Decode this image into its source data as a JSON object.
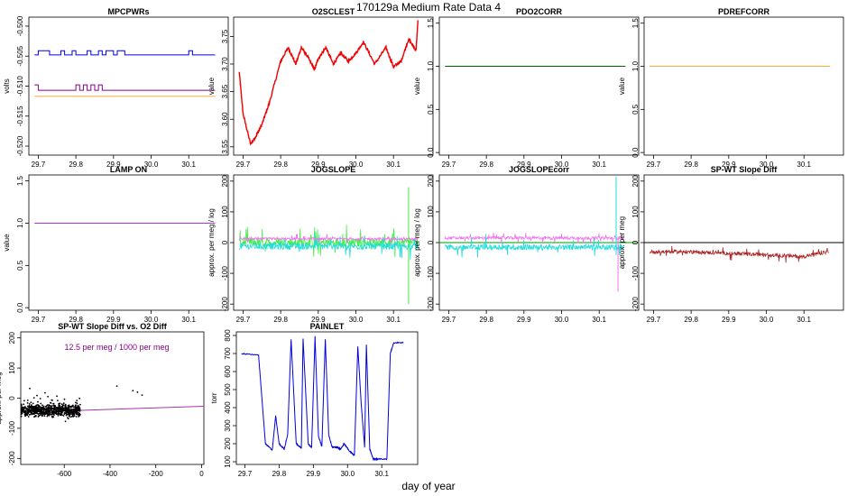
{
  "page": {
    "title": "170129a   Medium Rate Data 4",
    "xlabel": "day of year"
  },
  "chart_data": [
    {
      "id": "mpcpwrs",
      "type": "line",
      "title": "MPCPWRs",
      "xlabel": "",
      "ylabel": "volts",
      "xlim": [
        29.675,
        30.205
      ],
      "ylim": [
        -0.5215,
        -0.4985
      ],
      "xticks": [
        29.7,
        29.8,
        29.9,
        30.0,
        30.1
      ],
      "xtick_labels": [
        "29.7",
        "29.8",
        "29.9",
        "30.0",
        "30.1"
      ],
      "yticks": [
        -0.52,
        -0.515,
        -0.51,
        -0.505,
        -0.5
      ],
      "ytick_labels": [
        "-0.520",
        "-0.515",
        "-0.510",
        "-0.505",
        "-0.500"
      ],
      "colors": {
        "series1": "#0000ee",
        "series2": "#880088",
        "series3": "#ffaa33"
      },
      "series": [
        {
          "color": "#0000ee",
          "x": [
            29.69,
            29.7,
            29.7,
            29.73,
            29.73,
            29.76,
            29.76,
            29.77,
            29.77,
            29.79,
            29.79,
            29.8,
            29.8,
            29.83,
            29.83,
            29.84,
            29.84,
            29.86,
            29.86,
            29.87,
            29.87,
            29.88,
            29.88,
            29.9,
            29.9,
            29.91,
            29.91,
            29.93,
            29.93,
            29.95,
            29.95,
            30.1,
            30.1,
            30.11,
            30.11,
            30.12,
            30.12,
            30.17
          ],
          "y": [
            -0.5048,
            -0.5048,
            -0.5041,
            -0.5041,
            -0.5048,
            -0.5048,
            -0.5041,
            -0.5041,
            -0.5048,
            -0.5048,
            -0.5041,
            -0.5041,
            -0.5048,
            -0.5048,
            -0.5041,
            -0.5041,
            -0.5048,
            -0.5048,
            -0.5041,
            -0.5041,
            -0.5048,
            -0.5048,
            -0.5041,
            -0.5041,
            -0.5048,
            -0.5048,
            -0.5041,
            -0.5041,
            -0.5048,
            -0.5048,
            -0.5048,
            -0.5048,
            -0.5041,
            -0.5041,
            -0.5048,
            -0.5048,
            -0.5048,
            -0.5048
          ]
        },
        {
          "color": "#880088",
          "x": [
            29.69,
            29.7,
            29.7,
            29.8,
            29.8,
            29.81,
            29.81,
            29.82,
            29.82,
            29.83,
            29.83,
            29.84,
            29.84,
            29.85,
            29.85,
            29.86,
            29.86,
            29.87,
            29.87,
            30.17
          ],
          "y": [
            -0.5098,
            -0.5098,
            -0.5107,
            -0.5107,
            -0.5098,
            -0.5098,
            -0.5107,
            -0.5107,
            -0.5098,
            -0.5098,
            -0.5107,
            -0.5107,
            -0.5098,
            -0.5098,
            -0.5107,
            -0.5107,
            -0.5098,
            -0.5098,
            -0.5107,
            -0.5107
          ]
        },
        {
          "color": "#ffaa33",
          "x": [
            29.69,
            30.17
          ],
          "y": [
            -0.5117,
            -0.5117
          ]
        }
      ]
    },
    {
      "id": "o2sclest",
      "type": "line",
      "title": "O2SCLEST",
      "xlabel": "",
      "ylabel": "value",
      "xlim": [
        29.675,
        30.205
      ],
      "ylim": [
        3.535,
        3.785
      ],
      "xticks": [
        29.7,
        29.8,
        29.9,
        30.0,
        30.1
      ],
      "xtick_labels": [
        "29.7",
        "29.8",
        "29.9",
        "30.0",
        "30.1"
      ],
      "yticks": [
        3.55,
        3.6,
        3.65,
        3.7,
        3.75
      ],
      "ytick_labels": [
        "3.55",
        "3.60",
        "3.65",
        "3.70",
        "3.75"
      ],
      "colors": {
        "series1": "#ee0000"
      },
      "series": [
        {
          "color": "#ee0000",
          "x": [
            29.69,
            29.7,
            29.72,
            29.735,
            29.75,
            29.77,
            29.8,
            29.82,
            29.84,
            29.855,
            29.87,
            29.89,
            29.9,
            29.92,
            29.94,
            29.96,
            29.98,
            30.0,
            30.02,
            30.05,
            30.08,
            30.1,
            30.12,
            30.14,
            30.16,
            30.165
          ],
          "y": [
            3.685,
            3.61,
            3.555,
            3.57,
            3.59,
            3.63,
            3.705,
            3.73,
            3.7,
            3.73,
            3.715,
            3.69,
            3.71,
            3.73,
            3.7,
            3.72,
            3.705,
            3.72,
            3.74,
            3.7,
            3.73,
            3.695,
            3.705,
            3.745,
            3.725,
            3.78
          ]
        }
      ]
    },
    {
      "id": "pdo2corr",
      "type": "line",
      "title": "PDO2CORR",
      "xlabel": "",
      "ylabel": "value",
      "xlim": [
        29.675,
        30.205
      ],
      "ylim": [
        -0.03,
        1.57
      ],
      "xticks": [
        29.7,
        29.8,
        29.9,
        30.0,
        30.1
      ],
      "xtick_labels": [
        "29.7",
        "29.8",
        "29.9",
        "30.0",
        "30.1"
      ],
      "yticks": [
        0,
        0.5,
        1.0,
        1.5
      ],
      "ytick_labels": [
        "0.0",
        "0.5",
        "1.0",
        "1.5"
      ],
      "colors": {
        "series1": "#006400"
      },
      "series": [
        {
          "color": "#006400",
          "x": [
            29.69,
            30.17
          ],
          "y": [
            1.0,
            1.0
          ]
        }
      ]
    },
    {
      "id": "pdrefcorr",
      "type": "line",
      "title": "PDREFCORR",
      "xlabel": "",
      "ylabel": "value",
      "xlim": [
        29.675,
        30.205
      ],
      "ylim": [
        -0.03,
        1.57
      ],
      "xticks": [
        29.7,
        29.8,
        29.9,
        30.0,
        30.1
      ],
      "xtick_labels": [
        "29.7",
        "29.8",
        "29.9",
        "30.0",
        "30.1"
      ],
      "yticks": [
        0,
        0.5,
        1.0,
        1.5
      ],
      "ytick_labels": [
        "0.0",
        "0.5",
        "1.0",
        "1.5"
      ],
      "colors": {
        "series1": "#ffaa33"
      },
      "series": [
        {
          "color": "#ffaa33",
          "x": [
            29.69,
            30.17
          ],
          "y": [
            1.0,
            1.0
          ]
        }
      ]
    },
    {
      "id": "lampon",
      "type": "line",
      "title": "LAMP ON",
      "xlabel": "",
      "ylabel": "value",
      "xlim": [
        29.675,
        30.205
      ],
      "ylim": [
        -0.03,
        1.57
      ],
      "xticks": [
        29.7,
        29.8,
        29.9,
        30.0,
        30.1
      ],
      "xtick_labels": [
        "29.7",
        "29.8",
        "29.9",
        "30.0",
        "30.1"
      ],
      "yticks": [
        0,
        0.5,
        1.0,
        1.5
      ],
      "ytick_labels": [
        "0.0",
        "0.5",
        "1.0",
        "1.5"
      ],
      "colors": {
        "series1": "#aa33dd"
      },
      "series": [
        {
          "color": "#aa33dd",
          "x": [
            29.69,
            30.17
          ],
          "y": [
            1.0,
            1.0
          ]
        }
      ]
    },
    {
      "id": "jogslope",
      "type": "line",
      "title": "JOGSLOPE",
      "xlabel": "",
      "ylabel": "approx. per meg / log",
      "xlim": [
        29.675,
        30.205
      ],
      "ylim": [
        -220,
        220
      ],
      "xticks": [
        29.7,
        29.8,
        29.9,
        30.0,
        30.1
      ],
      "xtick_labels": [
        "29.7",
        "29.8",
        "29.9",
        "30.0",
        "30.1"
      ],
      "yticks": [
        -200,
        -100,
        0,
        100,
        200
      ],
      "ytick_labels": [
        "-200",
        "-100",
        "0",
        "100",
        "200"
      ],
      "colors": {
        "series1": "#44ee44",
        "series2": "#22dddd",
        "series3": "#ee77ee"
      },
      "noise": [
        {
          "color": "#44ee44",
          "center": 0,
          "amp": 28
        },
        {
          "color": "#22dddd",
          "center": -12,
          "amp": 22
        },
        {
          "color": "#ee77ee",
          "center": 12,
          "amp": 8
        }
      ],
      "spikes": [
        {
          "color": "#44ee44",
          "x": 30.14,
          "y0": -200,
          "y1": 180
        }
      ]
    },
    {
      "id": "jogslopecorr",
      "type": "line",
      "title": "JOGSLOPEcorr",
      "xlabel": "",
      "ylabel": "approx. per meg / log",
      "xlim": [
        29.675,
        30.205
      ],
      "ylim": [
        -220,
        220
      ],
      "xticks": [
        29.7,
        29.8,
        29.9,
        30.0,
        30.1
      ],
      "xtick_labels": [
        "29.7",
        "29.8",
        "29.9",
        "30.0",
        "30.1"
      ],
      "yticks": [
        -200,
        -100,
        0,
        100,
        200
      ],
      "ytick_labels": [
        "-200",
        "-100",
        "0",
        "100",
        "200"
      ],
      "colors": {
        "series1": "#ee77ee",
        "series2": "#22dddd",
        "series3": "#009900"
      },
      "hline": {
        "y": 0,
        "color": "#009900"
      },
      "noise": [
        {
          "color": "#ee77ee",
          "center": 15,
          "amp": 10
        },
        {
          "color": "#22dddd",
          "center": -15,
          "amp": 18
        }
      ],
      "spikes": [
        {
          "color": "#22dddd",
          "x": 30.145,
          "y0": -40,
          "y1": 215
        },
        {
          "color": "#ee77ee",
          "x": 30.15,
          "y0": -160,
          "y1": 20
        }
      ]
    },
    {
      "id": "spwtslopediff",
      "type": "line",
      "title": "SP-WT Slope Diff",
      "xlabel": "",
      "ylabel": "approx. per meg",
      "xlim": [
        29.675,
        30.205
      ],
      "ylim": [
        -220,
        220
      ],
      "xticks": [
        29.7,
        29.8,
        29.9,
        30.0,
        30.1
      ],
      "xtick_labels": [
        "29.7",
        "29.8",
        "29.9",
        "30.0",
        "30.1"
      ],
      "yticks": [
        -200,
        -100,
        0,
        100,
        200
      ],
      "ytick_labels": [
        "-200",
        "-100",
        "0",
        "100",
        "200"
      ],
      "colors": {
        "series1": "#aa2222",
        "hline": "#000000"
      },
      "hline": {
        "y": 0,
        "color": "#000000"
      },
      "noise": [
        {
          "color": "#aa2222",
          "trend": [
            [
              29.69,
              -30
            ],
            [
              29.8,
              -30
            ],
            [
              29.9,
              -35
            ],
            [
              30.0,
              -40
            ],
            [
              30.1,
              -45
            ],
            [
              30.165,
              -30
            ]
          ],
          "amp": 12
        }
      ]
    },
    {
      "id": "spwtvso2",
      "type": "scatter",
      "title": "SP-WT Slope Diff vs. O2 Diff",
      "annotation": "12.5 per meg / 1000 per meg",
      "xlabel": "",
      "ylabel": "approx. per meg",
      "xlim": [
        -790,
        10
      ],
      "ylim": [
        -220,
        220
      ],
      "xticks": [
        -600,
        -400,
        -200,
        0
      ],
      "xtick_labels": [
        "-600",
        "-400",
        "-200",
        "0"
      ],
      "yticks": [
        -200,
        -100,
        0,
        100,
        200
      ],
      "ytick_labels": [
        "-200",
        "-100",
        "0",
        "100",
        "200"
      ],
      "colors": {
        "points": "#000000",
        "fit": "#aa33aa",
        "annotation": "#880088"
      },
      "fit_line": {
        "x": [
          -790,
          10
        ],
        "y": [
          -47,
          -27
        ]
      },
      "cluster": {
        "x_range": [
          -790,
          -530
        ],
        "y_center": -40,
        "y_spread": 20
      }
    },
    {
      "id": "painlet",
      "type": "line",
      "title": "PAINLET",
      "xlabel": "",
      "ylabel": "torr",
      "xlim": [
        29.675,
        30.205
      ],
      "ylim": [
        85,
        820
      ],
      "xticks": [
        29.7,
        29.8,
        29.9,
        30.0,
        30.1
      ],
      "xtick_labels": [
        "29.7",
        "29.8",
        "29.9",
        "30.0",
        "30.1"
      ],
      "yticks": [
        100,
        200,
        300,
        400,
        500,
        600,
        700,
        800
      ],
      "ytick_labels": [
        "100",
        "200",
        "300",
        "400",
        "500",
        "600",
        "700",
        "800"
      ],
      "colors": {
        "series1": "#0000dd"
      },
      "series": [
        {
          "color": "#0000dd",
          "x": [
            29.69,
            29.74,
            29.76,
            29.78,
            29.79,
            29.8,
            29.815,
            29.825,
            29.835,
            29.85,
            29.865,
            29.87,
            29.885,
            29.895,
            29.905,
            29.915,
            29.925,
            29.935,
            29.945,
            29.955,
            29.97,
            29.98,
            29.99,
            30.005,
            30.02,
            30.03,
            30.04,
            30.05,
            30.055,
            30.065,
            30.075,
            30.08,
            30.09,
            30.115,
            30.125,
            30.135,
            30.165
          ],
          "y": [
            700,
            690,
            200,
            165,
            355,
            200,
            170,
            250,
            780,
            200,
            175,
            785,
            200,
            180,
            795,
            240,
            185,
            780,
            250,
            180,
            180,
            170,
            200,
            160,
            135,
            740,
            420,
            180,
            750,
            170,
            115,
            115,
            115,
            115,
            700,
            760,
            760
          ]
        }
      ]
    }
  ]
}
